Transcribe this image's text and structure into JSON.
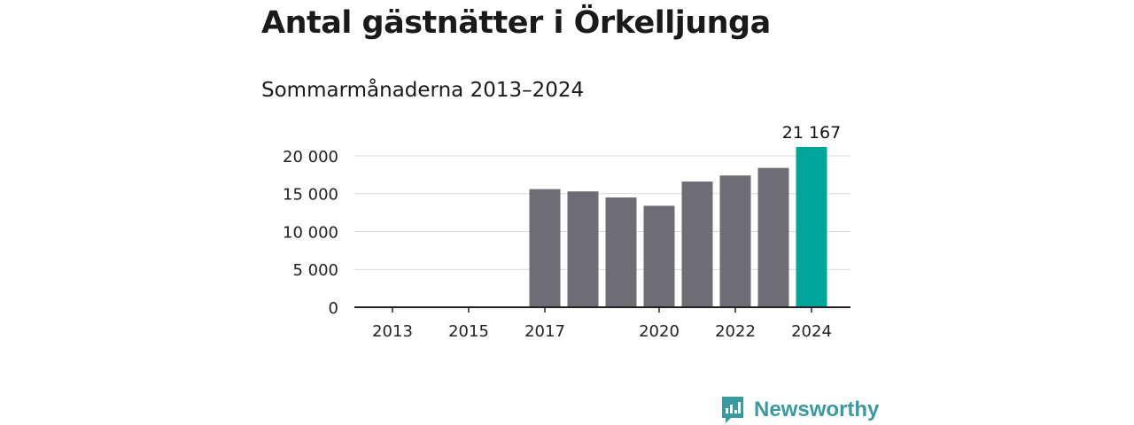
{
  "header": {
    "title": "Antal gästnätter i Örkelljunga",
    "subtitle": "Sommarmånaderna 2013–2024"
  },
  "brand": {
    "name": "Newsworthy",
    "icon": "newsworthy-logo-icon",
    "color": "#3a9aa0"
  },
  "chart_data": {
    "type": "bar",
    "categories": [
      "2013",
      "2014",
      "2015",
      "2016",
      "2017",
      "2018",
      "2019",
      "2020",
      "2021",
      "2022",
      "2023",
      "2024"
    ],
    "values": [
      null,
      null,
      null,
      null,
      15600,
      15300,
      14500,
      13400,
      16600,
      17400,
      18400,
      21167
    ],
    "x_tick_labels": [
      "2013",
      "2015",
      "2017",
      "2020",
      "2022",
      "2024"
    ],
    "y_ticks": [
      0,
      5000,
      10000,
      15000,
      20000
    ],
    "y_tick_labels": [
      "0",
      "5 000",
      "10 000",
      "15 000",
      "20 000"
    ],
    "ylim": [
      0,
      21167
    ],
    "highlight_label": "21 167",
    "grid": true,
    "colors": {
      "bar": "#6e6d74",
      "highlight": "#00a599",
      "grid": "#d9d9d9",
      "axis": "#222222"
    }
  }
}
